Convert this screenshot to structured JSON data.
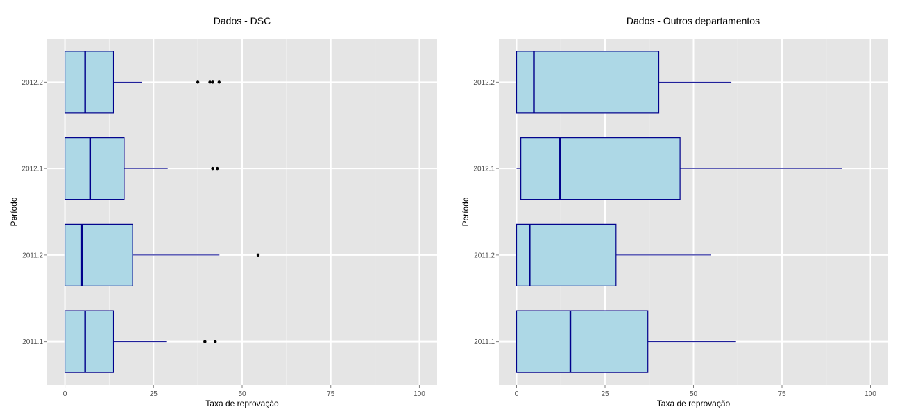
{
  "chart_data": [
    {
      "type": "boxplot",
      "orientation": "horizontal",
      "title": "Dados - DSC",
      "xlabel": "Taxa de reprovação",
      "ylabel": "Período",
      "xlim": [
        -5,
        105
      ],
      "xticks": [
        0,
        25,
        50,
        75,
        100
      ],
      "categories": [
        "2011.1",
        "2011.2",
        "2012.1",
        "2012.2"
      ],
      "grid": true,
      "boxes": [
        {
          "category": "2011.1",
          "min": 0,
          "q1": 0,
          "median": 5.7,
          "q3": 13.7,
          "max": 28.6,
          "outliers": [
            39.5,
            42.4
          ]
        },
        {
          "category": "2011.2",
          "min": 0,
          "q1": 0,
          "median": 4.8,
          "q3": 19.1,
          "max": 43.6,
          "outliers": [
            54.5
          ]
        },
        {
          "category": "2012.1",
          "min": 0,
          "q1": 0,
          "median": 7.1,
          "q3": 16.7,
          "max": 29.0,
          "outliers": [
            41.7,
            43.0
          ]
        },
        {
          "category": "2012.2",
          "min": 0,
          "q1": 0,
          "median": 5.7,
          "q3": 13.7,
          "max": 21.7,
          "outliers": [
            37.5,
            40.9,
            41.7,
            43.5
          ]
        }
      ]
    },
    {
      "type": "boxplot",
      "orientation": "horizontal",
      "title": "Dados - Outros departamentos",
      "xlabel": "Taxa de reprovação",
      "ylabel": "Período",
      "xlim": [
        -5,
        105
      ],
      "xticks": [
        0,
        25,
        50,
        75,
        100
      ],
      "categories": [
        "2011.1",
        "2011.2",
        "2012.1",
        "2012.2"
      ],
      "grid": true,
      "boxes": [
        {
          "category": "2011.1",
          "min": 0,
          "q1": 0,
          "median": 15.2,
          "q3": 37.1,
          "max": 62.0,
          "outliers": []
        },
        {
          "category": "2011.2",
          "min": 0,
          "q1": 0,
          "median": 3.7,
          "q3": 28.1,
          "max": 55.0,
          "outliers": []
        },
        {
          "category": "2012.1",
          "min": 0,
          "q1": 1.2,
          "median": 12.3,
          "q3": 46.2,
          "max": 92.0,
          "outliers": []
        },
        {
          "category": "2012.2",
          "min": 0,
          "q1": 0,
          "median": 4.9,
          "q3": 40.2,
          "max": 60.7,
          "outliers": []
        }
      ]
    }
  ],
  "colors": {
    "panel_background": "#e5e5e5",
    "grid_line": "#ffffff",
    "box_fill": "#add8e6",
    "box_stroke": "#00008b",
    "outlier": "#000000",
    "tick_label": "#4d4d4d"
  }
}
